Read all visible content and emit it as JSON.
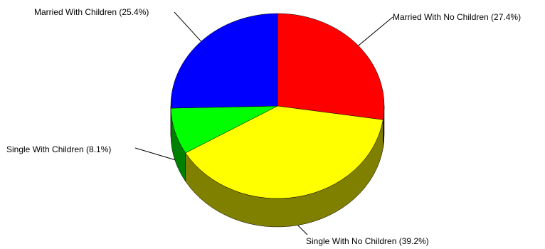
{
  "chart_data": {
    "type": "pie",
    "style": "3d",
    "title": "",
    "slices": [
      {
        "label": "Married With No Children (27.4%)",
        "value": 27.4,
        "color": "#ff0000",
        "side_color": "#800000"
      },
      {
        "label": "Single With No Children (39.2%)",
        "value": 39.2,
        "color": "#ffff00",
        "side_color": "#808000"
      },
      {
        "label": "Single With Children (8.1%)",
        "value": 8.1,
        "color": "#00ff00",
        "side_color": "#008000"
      },
      {
        "label": "Married With Children (25.4%)",
        "value": 25.4,
        "color": "#0000ff",
        "side_color": "#000080"
      }
    ]
  }
}
